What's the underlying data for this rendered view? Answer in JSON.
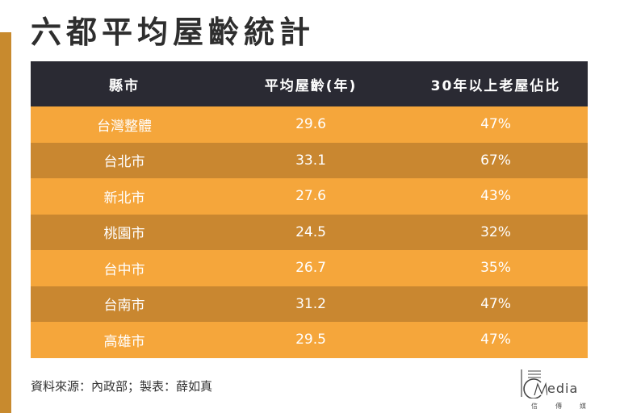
{
  "title": "六都平均屋齡統計",
  "chart_data": {
    "type": "table",
    "columns": [
      "縣市",
      "平均屋齡(年)",
      "30年以上老屋佔比"
    ],
    "rows": [
      [
        "台灣整體",
        "29.6",
        "47%"
      ],
      [
        "台北市",
        "33.1",
        "67%"
      ],
      [
        "新北市",
        "27.6",
        "43%"
      ],
      [
        "桃園市",
        "24.5",
        "32%"
      ],
      [
        "台中市",
        "26.7",
        "35%"
      ],
      [
        "台南市",
        "31.2",
        "47%"
      ],
      [
        "高雄市",
        "29.5",
        "47%"
      ]
    ]
  },
  "source": "資料來源：內政部；製表：薛如真",
  "logo": {
    "wordmark": "edia",
    "chinese": "信傳媒"
  },
  "colors": {
    "header_bg": "#2a2a33",
    "row_dark": "#c98730",
    "row_light": "#f5a63b",
    "accent_bar": "#c88a2e"
  }
}
